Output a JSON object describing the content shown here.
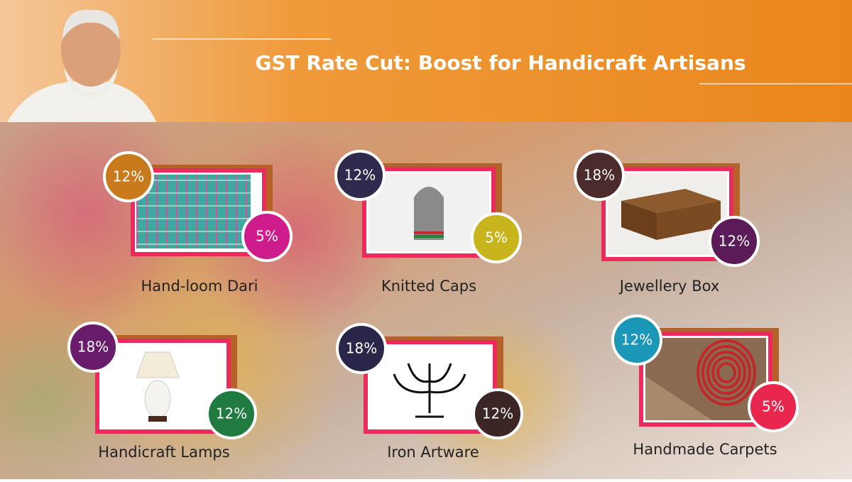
{
  "header": {
    "title": "GST Rate Cut: Boost for Handicraft Artisans"
  },
  "items": [
    {
      "name": "Hand-loom Dari",
      "old_rate": "12%",
      "new_rate": "5%",
      "old_color": "#c97a1c",
      "new_color": "#cf1c8c"
    },
    {
      "name": "Knitted Caps",
      "old_rate": "12%",
      "new_rate": "5%",
      "old_color": "#2f2a4e",
      "new_color": "#c8b41c"
    },
    {
      "name": "Jewellery Box",
      "old_rate": "18%",
      "new_rate": "12%",
      "old_color": "#4b2b2b",
      "new_color": "#5b1a58"
    },
    {
      "name": "Handicraft Lamps",
      "old_rate": "18%",
      "new_rate": "12%",
      "old_color": "#6a1c6c",
      "new_color": "#1f7b40"
    },
    {
      "name": "Iron Artware",
      "old_rate": "18%",
      "new_rate": "12%",
      "old_color": "#2a2649",
      "new_color": "#3b2525"
    },
    {
      "name": "Handmade Carpets",
      "old_rate": "12%",
      "new_rate": "5%",
      "old_color": "#1b98b8",
      "new_color": "#e8264e"
    }
  ]
}
